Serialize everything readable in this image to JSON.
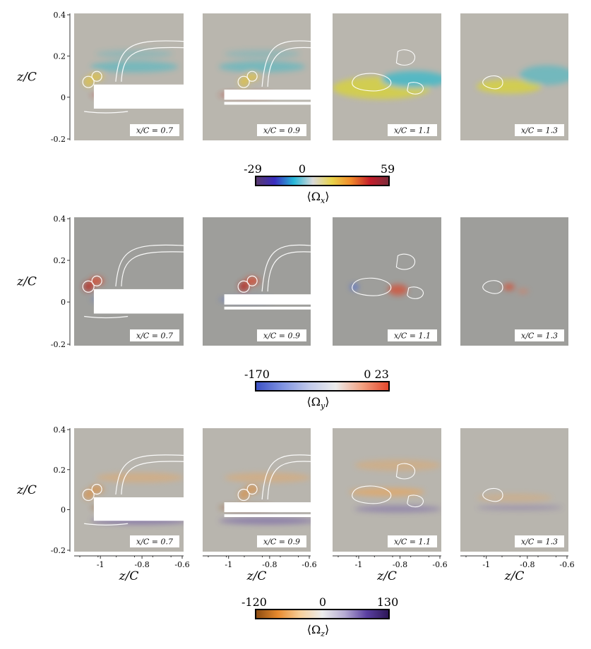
{
  "figure": {
    "rows": [
      {
        "ylabel": "z/C",
        "yticks": [
          "0.4",
          "0.2",
          "0",
          "-0.2"
        ],
        "panel_labels": [
          "x/C = 0.7",
          "x/C = 0.9",
          "x/C = 1.1",
          "x/C = 1.3"
        ],
        "colorbar": {
          "label": "⟨Ω",
          "subscript": "x",
          "tick_labels": [
            "-29",
            "0",
            "59"
          ],
          "colormap": [
            "#5a3a6b",
            "#3a2dbf",
            "#27b7d8",
            "#d9d9d9",
            "#e8d34a",
            "#f18a2a",
            "#c41e2a",
            "#7a2b3b"
          ],
          "panel_bg": "#b9b6ae"
        }
      },
      {
        "ylabel": "z/C",
        "yticks": [
          "0.4",
          "0.2",
          "0",
          "-0.2"
        ],
        "panel_labels": [
          "x/C = 0.7",
          "x/C = 0.9",
          "x/C = 1.1",
          "x/C = 1.3"
        ],
        "colorbar": {
          "label": "⟨Ω",
          "subscript": "y",
          "tick_labels": [
            "-170",
            "0 23"
          ],
          "colormap": [
            "#3a4fc4",
            "#7f92e0",
            "#c0c8ea",
            "#ebebeb",
            "#f2a080",
            "#e4452a"
          ],
          "panel_bg": "#9e9e9b"
        }
      },
      {
        "ylabel": "z/C",
        "yticks": [
          "0.4",
          "0.2",
          "0",
          "-0.2"
        ],
        "panel_labels": [
          "x/C = 0.7",
          "x/C = 0.9",
          "x/C = 1.1",
          "x/C = 1.3"
        ],
        "xlabel": "z/C",
        "xticks": [
          "-1",
          "-0.8",
          "-0.6"
        ],
        "colorbar": {
          "label": "⟨Ω",
          "subscript": "z",
          "tick_labels": [
            "-120",
            "0",
            "130"
          ],
          "colormap": [
            "#8a4a10",
            "#e88a2e",
            "#f6cf9a",
            "#ececec",
            "#b6abd3",
            "#5a3fa1",
            "#2c1655"
          ],
          "panel_bg": "#b8b5ae"
        }
      }
    ]
  }
}
